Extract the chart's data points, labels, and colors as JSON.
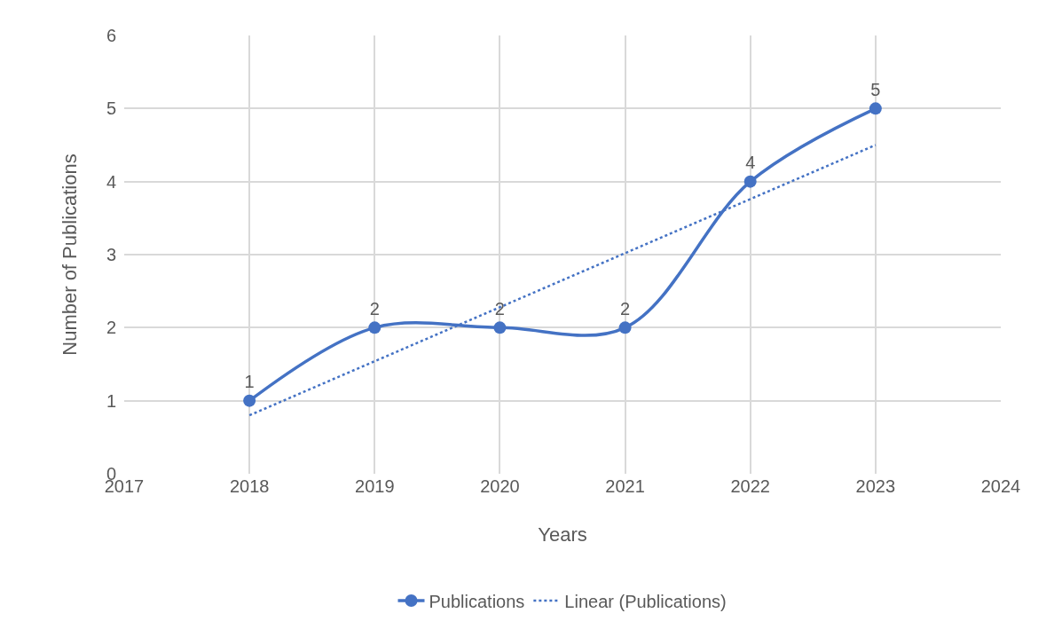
{
  "chart_data": {
    "type": "line",
    "xlabel": "Years",
    "ylabel": "Number of Publications",
    "x": [
      2018,
      2019,
      2020,
      2021,
      2022,
      2023
    ],
    "series": [
      {
        "name": "Publications",
        "color": "#4472c4",
        "values": [
          1,
          2,
          2,
          2,
          4,
          5
        ],
        "value_labels": [
          "1",
          "2",
          "2",
          "2",
          "4",
          "5"
        ],
        "marker": "circle",
        "line_style": "solid"
      },
      {
        "name": "Linear (Publications)",
        "type": "line",
        "color": "#4472c4",
        "x": [
          2018,
          2023
        ],
        "values": [
          0.8,
          4.5
        ],
        "marker": "none",
        "line_style": "dotted"
      }
    ],
    "xlim": [
      2017,
      2024
    ],
    "xticks": [
      2017,
      2018,
      2019,
      2020,
      2021,
      2022,
      2023,
      2024
    ],
    "ylim": [
      0,
      6
    ],
    "yticks": [
      0,
      1,
      2,
      3,
      4,
      5,
      6
    ],
    "grid": true,
    "legend": "bottom"
  }
}
